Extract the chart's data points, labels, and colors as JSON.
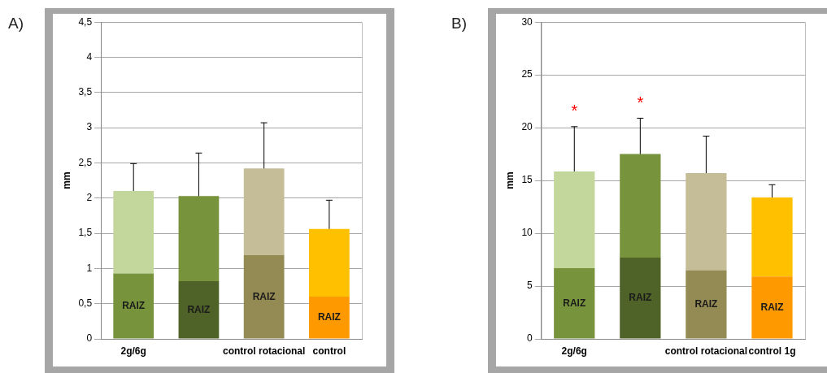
{
  "chart_data": [
    {
      "type": "bar",
      "title": "A)",
      "ylabel": "mm",
      "categories": [
        "2g/6g",
        null,
        "control rotacional",
        "control"
      ],
      "stacked": true,
      "grid": "y",
      "legend": false,
      "ylim": [
        0,
        4.5
      ],
      "yticks": [
        0,
        {
          "value": 0.5,
          "label": "0,5"
        },
        1,
        {
          "value": 1.5,
          "label": "1,5"
        },
        2,
        {
          "value": 2.5,
          "label": "2,5"
        },
        3,
        {
          "value": 3.5,
          "label": "3,5"
        },
        4,
        {
          "value": 4.5,
          "label": "4,5"
        }
      ],
      "series": [
        {
          "colors": [
            "#77933c",
            "#4f6228",
            "#948a54",
            "#ff9900"
          ],
          "values": [
            0.93,
            0.82,
            1.19,
            0.6
          ],
          "value_labels": [
            "RAIZ",
            "RAIZ",
            "RAIZ",
            "RAIZ"
          ]
        },
        {
          "colors": [
            "#c3d69b",
            "#77933c",
            "#c4bd97",
            "#ffc000"
          ],
          "values": [
            1.17,
            1.21,
            1.23,
            0.96
          ],
          "errors": [
            0.39,
            0.61,
            0.65,
            0.41
          ]
        }
      ]
    },
    {
      "type": "bar",
      "title": "B)",
      "ylabel": "mm",
      "categories": [
        "2g/6g",
        null,
        "control rotacional",
        "control 1g"
      ],
      "stacked": true,
      "grid": "y",
      "legend": false,
      "ylim": [
        0,
        30
      ],
      "yticks": [
        0,
        5,
        10,
        15,
        20,
        25,
        30
      ],
      "annotations": [
        "*",
        "*"
      ],
      "series": [
        {
          "colors": [
            "#77933c",
            "#4f6228",
            "#948a54",
            "#ff9900"
          ],
          "values": [
            6.7,
            7.7,
            6.5,
            5.9
          ],
          "value_labels": [
            "RAIZ",
            "RAIZ",
            "RAIZ",
            "RAIZ"
          ]
        },
        {
          "colors": [
            "#c3d69b",
            "#77933c",
            "#c4bd97",
            "#ffc000"
          ],
          "values": [
            9.15,
            9.8,
            9.2,
            7.5
          ],
          "errors": [
            4.25,
            3.4,
            3.5,
            1.2
          ]
        }
      ]
    }
  ]
}
